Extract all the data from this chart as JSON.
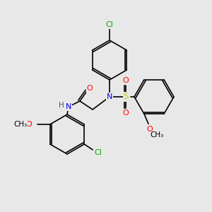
{
  "background_color": "#e8e8e8",
  "bond_color": "#000000",
  "atom_colors": {
    "Cl": "#00aa00",
    "N": "#0000ff",
    "O": "#ff0000",
    "S": "#cccc00",
    "H": "#555555",
    "C": "#000000"
  },
  "font_size": 7.5,
  "line_width": 1.2
}
